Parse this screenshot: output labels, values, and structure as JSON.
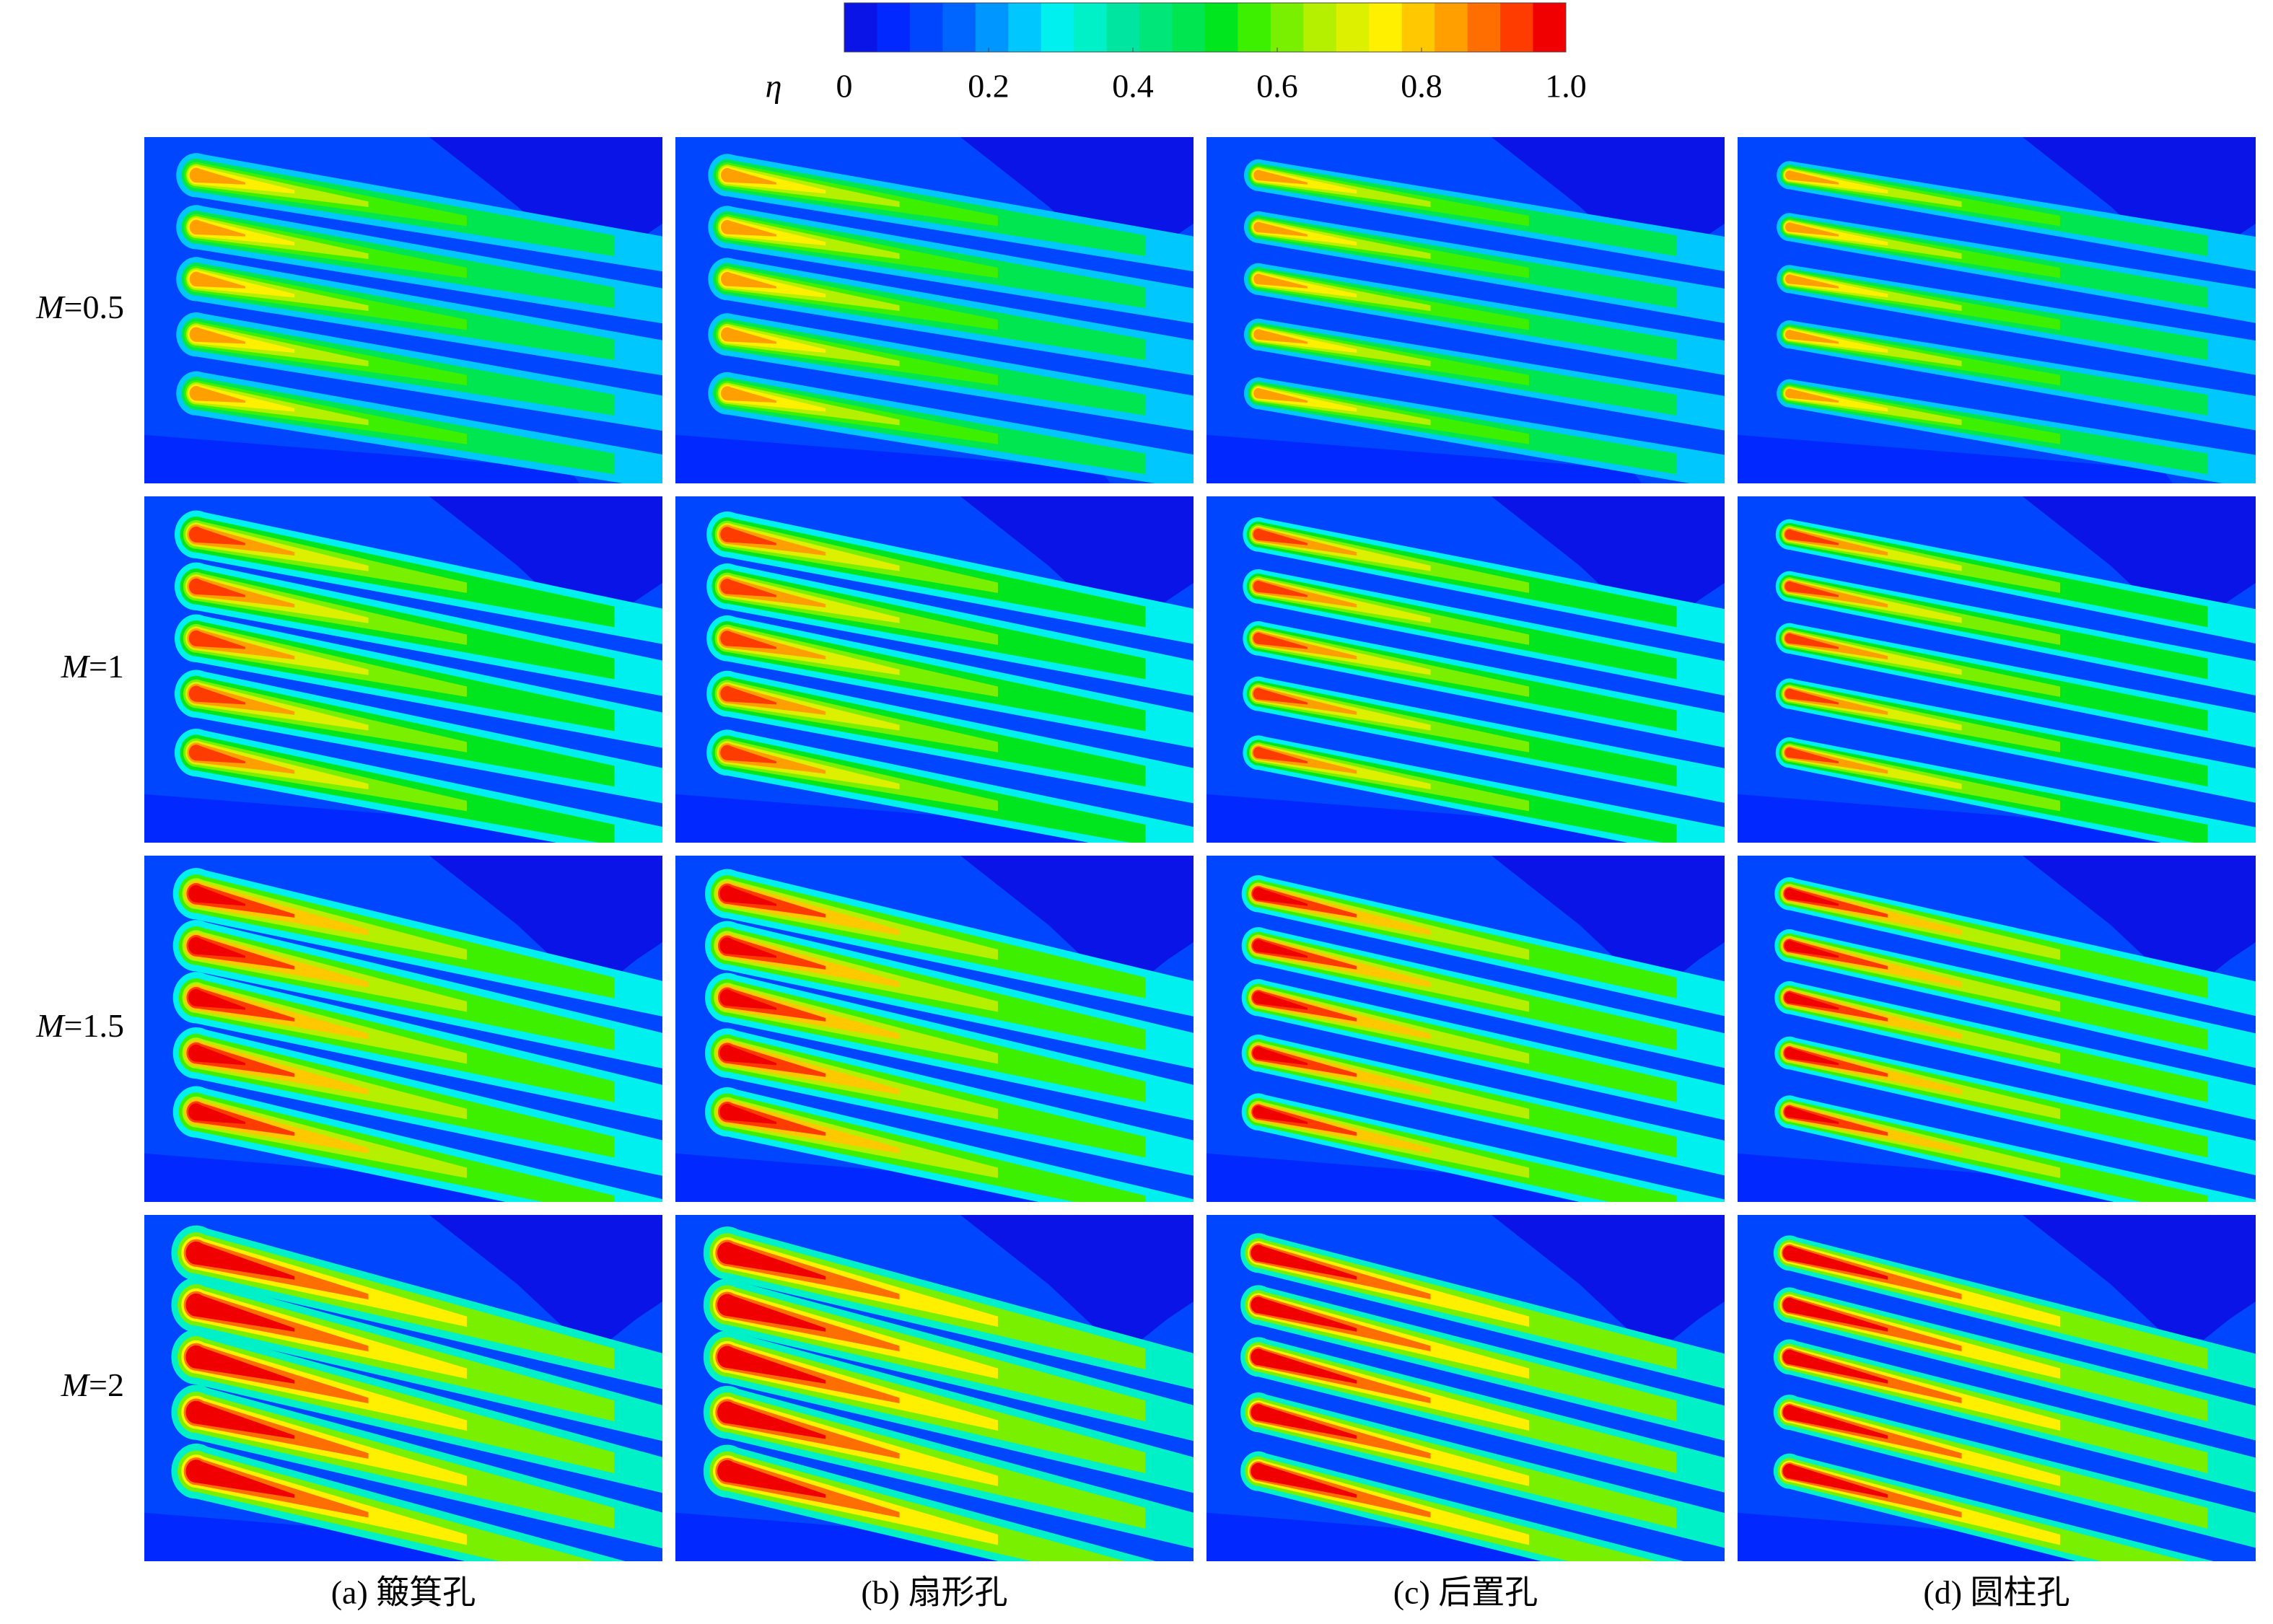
{
  "chart_data": {
    "type": "contour",
    "colorbar": {
      "label": "η",
      "lim": [
        0,
        1
      ],
      "ticks": [
        0,
        0.2,
        0.4,
        0.6,
        0.8,
        {
          "value": 1,
          "label": "1.0"
        }
      ],
      "colors": [
        "#0a14e6",
        "#0028ff",
        "#0046ff",
        "#0064ff",
        "#0096ff",
        "#00c8ff",
        "#00f0f0",
        "#00f0c8",
        "#00e6a0",
        "#00e678",
        "#00e650",
        "#00e61e",
        "#3cf000",
        "#78f000",
        "#b4f000",
        "#dcf000",
        "#fff000",
        "#ffc800",
        "#ffa000",
        "#ff6e00",
        "#ff3c00",
        "#f00000"
      ]
    },
    "rows": [
      "M=0.5",
      "M=1",
      "M=1.5",
      "M=2"
    ],
    "columns": [
      "(a) 簸箕孔",
      "(b) 扇形孔",
      "(c) 后置孔",
      "(d) 圆柱孔"
    ]
  }
}
